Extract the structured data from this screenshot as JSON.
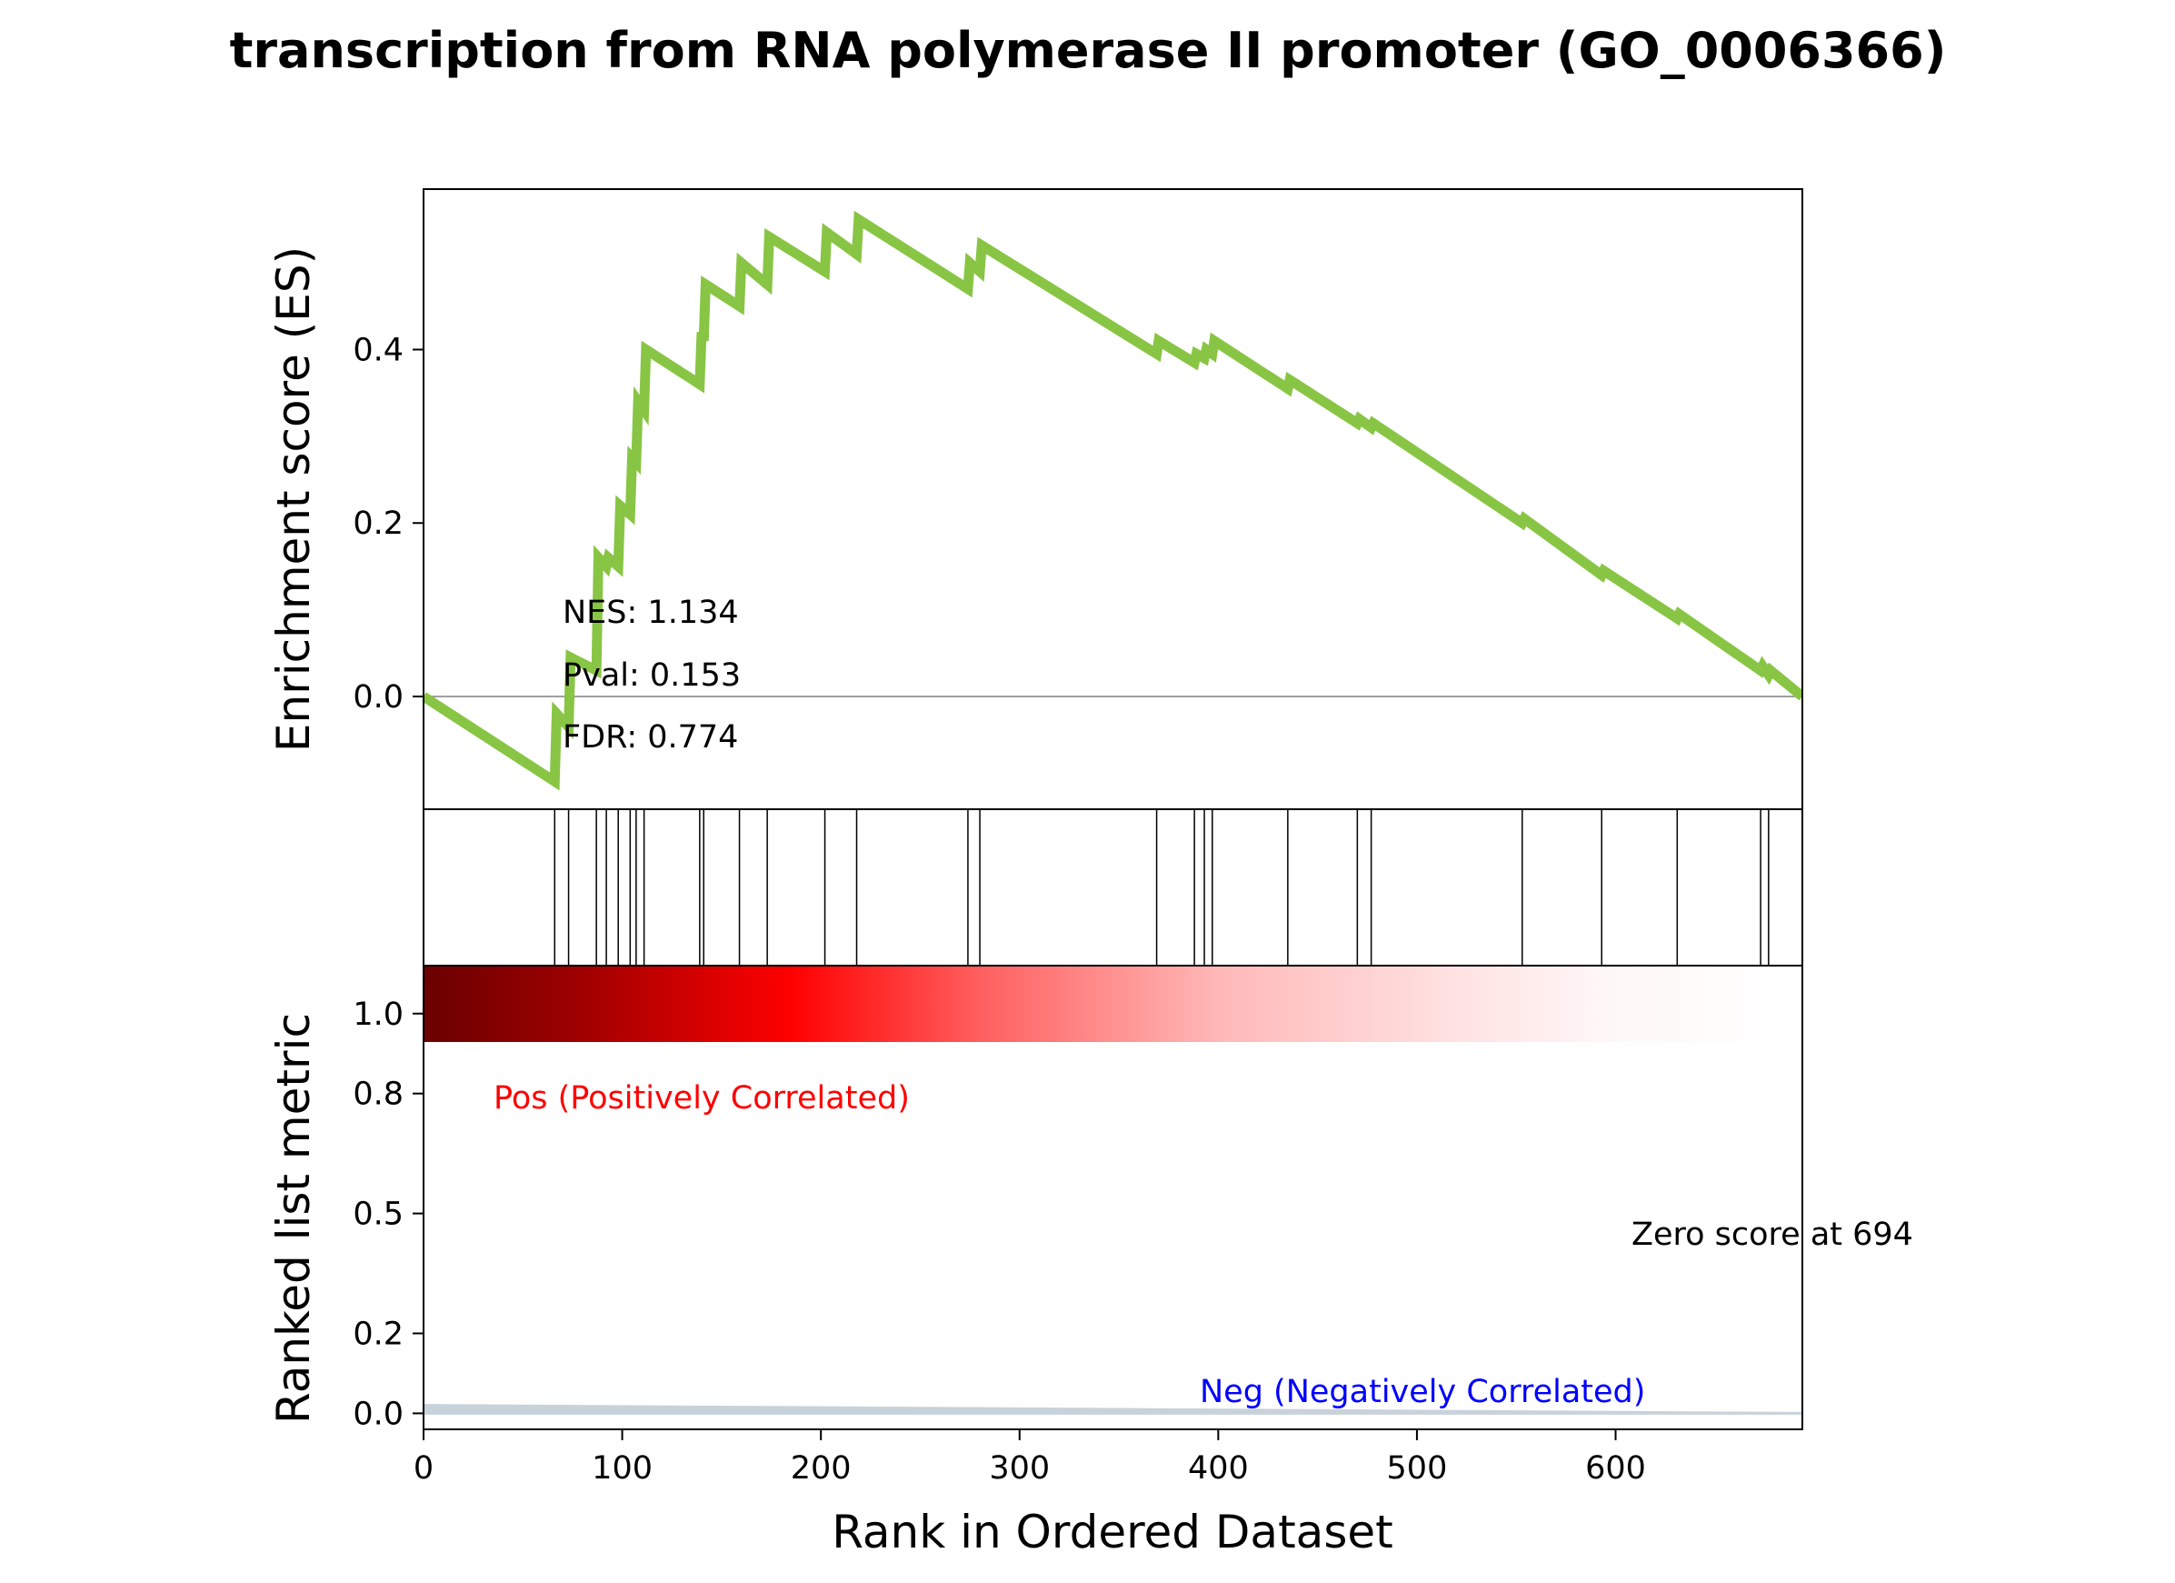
{
  "colors": {
    "es_line": "#88c544",
    "pos_label": "#ff0000",
    "neg_label": "#0000ff",
    "zero_line": "#808080",
    "metric_fill": "#c8d2da",
    "axis": "#000000"
  },
  "chart_data": {
    "type": "line",
    "title": "transcription from RNA polymerase II promoter (GO_0006366)",
    "xlabel": "Rank in Ordered Dataset",
    "xlim": [
      0,
      694
    ],
    "x_ticks": [
      0,
      100,
      200,
      300,
      400,
      500,
      600
    ],
    "es_panel": {
      "ylabel": "Enrichment score (ES)",
      "ylim": [
        -0.13,
        0.585
      ],
      "y_ticks": [
        0.0,
        0.2,
        0.4
      ],
      "y_tick_labels": [
        "0.0",
        "0.2",
        "0.4"
      ],
      "zero_line": true,
      "series": {
        "x": [
          0,
          66,
          67,
          73,
          74,
          87,
          88,
          92,
          93,
          98,
          99,
          104,
          105,
          107,
          108,
          111,
          112,
          139,
          140,
          141,
          142,
          159,
          160,
          173,
          174,
          202,
          203,
          218,
          219,
          274,
          275,
          280,
          281,
          369,
          370,
          388,
          389,
          393,
          394,
          397,
          398,
          435,
          436,
          470,
          471,
          477,
          478,
          553,
          554,
          593,
          594,
          631,
          632,
          673,
          674,
          677,
          678,
          694
        ],
        "y": [
          0.0,
          -0.098,
          -0.02,
          -0.035,
          0.045,
          0.03,
          0.16,
          0.15,
          0.16,
          0.15,
          0.22,
          0.21,
          0.275,
          0.27,
          0.34,
          0.33,
          0.4,
          0.36,
          0.42,
          0.41,
          0.475,
          0.45,
          0.5,
          0.475,
          0.53,
          0.49,
          0.535,
          0.51,
          0.55,
          0.47,
          0.5,
          0.49,
          0.52,
          0.395,
          0.41,
          0.385,
          0.395,
          0.39,
          0.4,
          0.395,
          0.41,
          0.355,
          0.365,
          0.315,
          0.32,
          0.31,
          0.315,
          0.2,
          0.205,
          0.14,
          0.145,
          0.09,
          0.095,
          0.03,
          0.035,
          0.025,
          0.03,
          0.0
        ]
      },
      "annotations": [
        "NES: 1.134",
        "Pval: 0.153",
        "FDR: 0.774"
      ]
    },
    "hits_panel": {
      "hits": [
        66,
        73,
        87,
        92,
        98,
        104,
        107,
        111,
        139,
        141,
        159,
        173,
        202,
        218,
        274,
        280,
        369,
        388,
        393,
        397,
        435,
        470,
        477,
        553,
        593,
        631,
        673,
        677
      ]
    },
    "heatmap_bar": {
      "colormap": "seismic-red",
      "gradient_stops": [
        {
          "x": 0,
          "color": "#6a0000"
        },
        {
          "x": 80,
          "color": "#a00000"
        },
        {
          "x": 185,
          "color": "#ff0000"
        },
        {
          "x": 280,
          "color": "#ff5f5f"
        },
        {
          "x": 400,
          "color": "#ffb8b8"
        },
        {
          "x": 520,
          "color": "#ffe2e2"
        },
        {
          "x": 600,
          "color": "#fff8f8"
        },
        {
          "x": 694,
          "color": "#ffffff"
        }
      ]
    },
    "metric_panel": {
      "ylabel": "Ranked list metric",
      "ylim": [
        -0.04,
        1.12
      ],
      "y_ticks": [
        0.0,
        0.2,
        0.5,
        0.8,
        1.0
      ],
      "y_tick_labels": [
        "0.0",
        "0.2",
        "0.5",
        "0.8",
        "1.0"
      ],
      "series": {
        "x": [
          0,
          694
        ],
        "y": [
          0.02,
          0.0
        ]
      },
      "pos_label": "Pos (Positively Correlated)",
      "neg_label": "Neg (Negatively Correlated)",
      "zero_score_label": "Zero score at 694"
    }
  }
}
